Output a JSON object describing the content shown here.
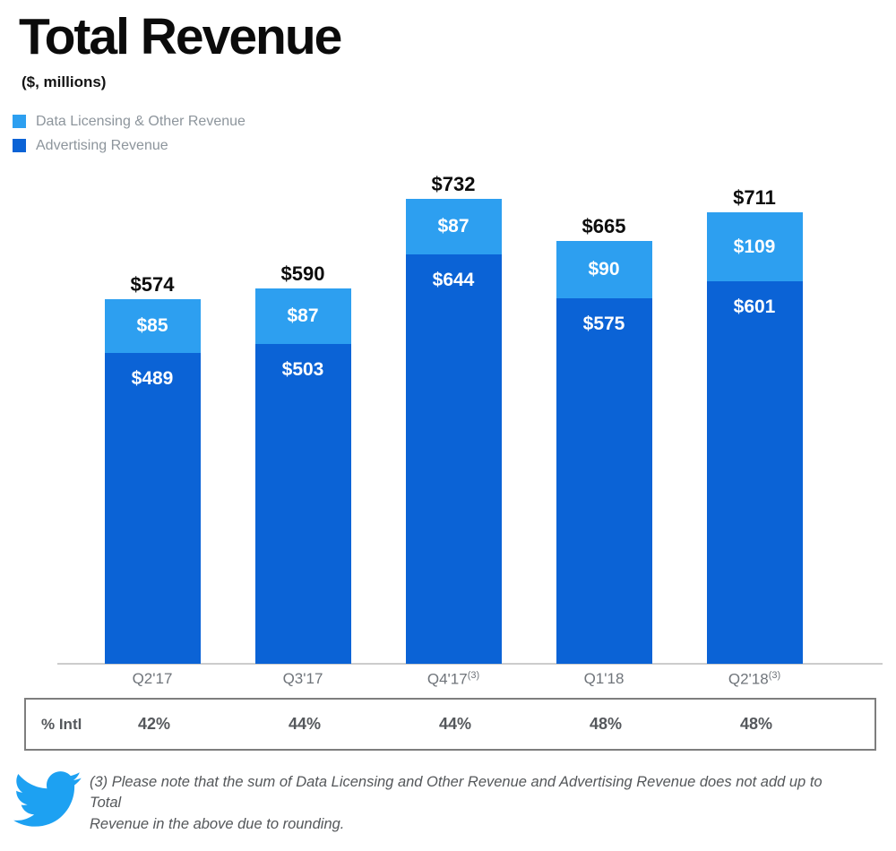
{
  "header": {
    "title": "Total Revenue",
    "units": "($, millions)"
  },
  "legend": [
    {
      "label": "Data Licensing & Other Revenue",
      "color": "#2D9FF0"
    },
    {
      "label": "Advertising Revenue",
      "color": "#0B63D6"
    }
  ],
  "chart_data": {
    "type": "bar",
    "stacked": true,
    "title": "Total Revenue",
    "units": "$, millions",
    "grid": false,
    "legend_position": "top-left",
    "categories": [
      "Q2'17",
      "Q3'17",
      "Q4'17",
      "Q1'18",
      "Q2'18"
    ],
    "category_sups": [
      "",
      "",
      "(3)",
      "",
      "(3)"
    ],
    "series": [
      {
        "name": "Advertising Revenue",
        "color": "#0B63D6",
        "values": [
          489,
          503,
          644,
          575,
          601
        ],
        "labels": [
          "$489",
          "$503",
          "$644",
          "$575",
          "$601"
        ]
      },
      {
        "name": "Data Licensing & Other Revenue",
        "color": "#2D9FF0",
        "values": [
          85,
          87,
          87,
          90,
          109
        ],
        "labels": [
          "$85",
          "$87",
          "$87",
          "$90",
          "$109"
        ]
      }
    ],
    "totals": {
      "values": [
        574,
        590,
        732,
        665,
        711
      ],
      "labels": [
        "$574",
        "$590",
        "$732",
        "$665",
        "$711"
      ]
    },
    "ylim": [
      0,
      760
    ]
  },
  "intl_row": {
    "label": "% Intl",
    "values": [
      "42%",
      "44%",
      "44%",
      "48%",
      "48%"
    ]
  },
  "footnote": {
    "lines": [
      "(3) Please note that the sum of Data Licensing and Other Revenue and Advertising Revenue does not add up to Total",
      "Revenue in the above due to rounding."
    ]
  },
  "colors": {
    "light_blue": "#2D9FF0",
    "dark_blue": "#0B63D6",
    "twitter_blue": "#1DA1F2",
    "axis_line": "#CCCCCC"
  }
}
